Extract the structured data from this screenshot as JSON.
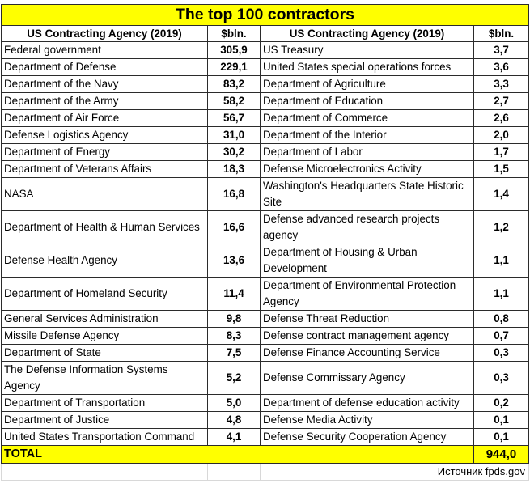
{
  "title": "The top 100 contractors",
  "headers": {
    "agency_left": "US Contracting Agency (2019)",
    "value_left": "$bln.",
    "agency_right": "US Contracting Agency (2019)",
    "value_right": "$bln."
  },
  "rows": [
    {
      "left_agency": "Federal government",
      "left_value": "305,9",
      "right_agency": "US Treasury",
      "right_value": "3,7"
    },
    {
      "left_agency": "Department of Defense",
      "left_value": "229,1",
      "right_agency": "United States special operations forces",
      "right_value": "3,6"
    },
    {
      "left_agency": "Department of the Navy",
      "left_value": "83,2",
      "right_agency": "Department of Agriculture",
      "right_value": "3,3"
    },
    {
      "left_agency": "Department of the Army",
      "left_value": "58,2",
      "right_agency": "Department of Education",
      "right_value": "2,7"
    },
    {
      "left_agency": "Department of Air Force",
      "left_value": "56,7",
      "right_agency": "Department of Commerce",
      "right_value": "2,6"
    },
    {
      "left_agency": "Defense Logistics Agency",
      "left_value": "31,0",
      "right_agency": "Department of the Interior",
      "right_value": "2,0"
    },
    {
      "left_agency": "Department of Energy",
      "left_value": "30,2",
      "right_agency": "Department of Labor",
      "right_value": "1,7"
    },
    {
      "left_agency": "Department of Veterans Affairs",
      "left_value": "18,3",
      "right_agency": "Defense Microelectronics Activity",
      "right_value": "1,5"
    },
    {
      "left_agency": "NASA",
      "left_value": "16,8",
      "right_agency": "Washington's Headquarters State Historic Site",
      "right_value": "1,4"
    },
    {
      "left_agency": "Department of Health & Human Services",
      "left_value": "16,6",
      "right_agency": "Defense advanced research projects agency",
      "right_value": "1,2"
    },
    {
      "left_agency": "Defense Health Agency",
      "left_value": "13,6",
      "right_agency": "Department of Housing & Urban Development",
      "right_value": "1,1"
    },
    {
      "left_agency": "Department of Homeland Security",
      "left_value": "11,4",
      "right_agency": "Department of Environmental Protection Agency",
      "right_value": "1,1"
    },
    {
      "left_agency": "General Services Administration",
      "left_value": "9,8",
      "right_agency": "Defense Threat Reduction",
      "right_value": "0,8"
    },
    {
      "left_agency": "Missile Defense Agency",
      "left_value": "8,3",
      "right_agency": "Defense contract management agency",
      "right_value": "0,7"
    },
    {
      "left_agency": "Department of State",
      "left_value": "7,5",
      "right_agency": "Defense Finance Accounting Service",
      "right_value": "0,3"
    },
    {
      "left_agency": "The Defense Information Systems Agency",
      "left_value": "5,2",
      "right_agency": "Defense Commissary Agency",
      "right_value": "0,3"
    },
    {
      "left_agency": "Department of Transportation",
      "left_value": "5,0",
      "right_agency": "Department of defense education activity",
      "right_value": "0,2"
    },
    {
      "left_agency": "Department of Justice",
      "left_value": "4,8",
      "right_agency": "Defense Media Activity",
      "right_value": "0,1"
    },
    {
      "left_agency": "United States Transportation Command",
      "left_value": "4,1",
      "right_agency": "Defense Security Cooperation Agency",
      "right_value": "0,1"
    }
  ],
  "total": {
    "label": "TOTAL",
    "value": "944,0"
  },
  "source": "Источник fpds.gov",
  "colors": {
    "highlight": "#ffff00",
    "border": "#2b2b2b"
  }
}
